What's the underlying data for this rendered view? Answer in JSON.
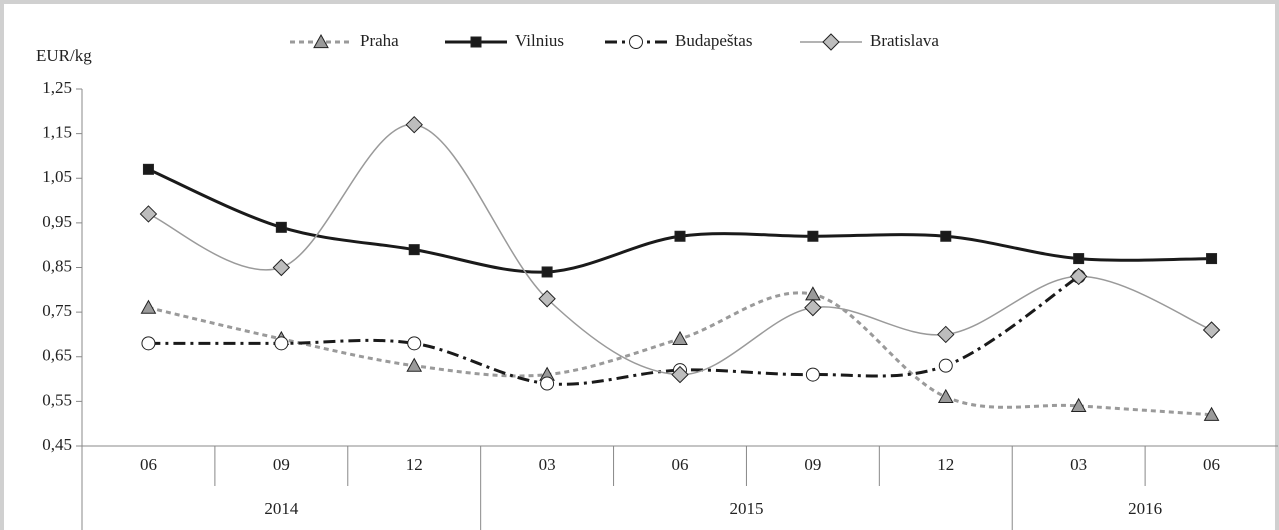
{
  "chart_data": {
    "type": "line",
    "y_axis_label": "EUR/kg",
    "categories": [
      "06",
      "09",
      "12",
      "03",
      "06",
      "09",
      "12",
      "03",
      "06"
    ],
    "years": [
      "2014",
      "2014",
      "2014",
      "2015",
      "2015",
      "2015",
      "2015",
      "2016",
      "2016"
    ],
    "ylim": [
      0.45,
      1.25
    ],
    "yticks": [
      {
        "value": 0.45,
        "label": "0,45"
      },
      {
        "value": 0.55,
        "label": "0,55"
      },
      {
        "value": 0.65,
        "label": "0,65"
      },
      {
        "value": 0.75,
        "label": "0,75"
      },
      {
        "value": 0.85,
        "label": "0,85"
      },
      {
        "value": 0.95,
        "label": "0,95"
      },
      {
        "value": 1.05,
        "label": "1,05"
      },
      {
        "value": 1.15,
        "label": "1,15"
      },
      {
        "value": 1.25,
        "label": "1,25"
      }
    ],
    "grid": false,
    "legend": "top",
    "series": [
      {
        "name": "Praha",
        "color": "#9a9a9a",
        "dash": "5 4",
        "width": 3,
        "marker": "triangle",
        "marker_fill": "#9a9a9a",
        "values": [
          0.76,
          0.69,
          0.63,
          0.61,
          0.69,
          0.79,
          0.56,
          0.54,
          0.52
        ]
      },
      {
        "name": "Vilnius",
        "color": "#1a1a1a",
        "dash": "none",
        "width": 3,
        "marker": "square",
        "marker_fill": "#1a1a1a",
        "values": [
          1.07,
          0.94,
          0.89,
          0.84,
          0.92,
          0.92,
          0.92,
          0.87,
          0.87
        ]
      },
      {
        "name": "Budapeštas",
        "color": "#1a1a1a",
        "dash": "12 5 3 5",
        "width": 3,
        "marker": "circle",
        "marker_fill": "#ffffff",
        "values": [
          0.68,
          0.68,
          0.68,
          0.59,
          0.62,
          0.61,
          0.63,
          0.83,
          null
        ]
      },
      {
        "name": "Bratislava",
        "color": "#9a9a9a",
        "dash": "none",
        "width": 1.5,
        "marker": "diamond",
        "marker_fill": "#bdbdbd",
        "values": [
          0.97,
          0.85,
          1.17,
          0.78,
          0.61,
          0.76,
          0.7,
          0.83,
          0.71
        ]
      }
    ]
  }
}
